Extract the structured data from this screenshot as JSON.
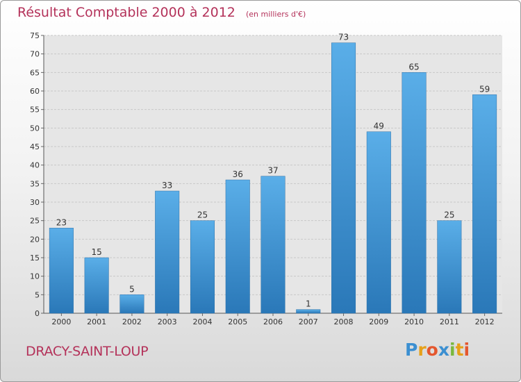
{
  "header": {
    "title": "Résultat Comptable 2000 à 2012",
    "unit": "(en milliers d'€)"
  },
  "footer": {
    "town": "DRACY-SAINT-LOUP",
    "logo_letters": [
      "P",
      "r",
      "o",
      "x",
      "i",
      "t",
      "i"
    ],
    "logo_colors": [
      "#3b8fd1",
      "#e6a11a",
      "#e4572e",
      "#3b8fd1",
      "#7ab83e",
      "#e6a11a",
      "#e4572e"
    ]
  },
  "colors": {
    "bar_top": "#5aaee8",
    "bar_bottom": "#2a78b8",
    "title": "#b4325a",
    "grid": "#c8c8c8"
  },
  "chart_data": {
    "type": "bar",
    "categories": [
      "2000",
      "2001",
      "2002",
      "2003",
      "2004",
      "2005",
      "2006",
      "2007",
      "2008",
      "2009",
      "2010",
      "2011",
      "2012"
    ],
    "values": [
      23,
      15,
      5,
      33,
      25,
      36,
      37,
      1,
      73,
      49,
      65,
      25,
      59
    ],
    "ylim": [
      0,
      75
    ],
    "yticks": [
      0,
      5,
      10,
      15,
      20,
      25,
      30,
      35,
      40,
      45,
      50,
      55,
      60,
      65,
      70,
      75
    ],
    "grid": true,
    "legend": "none"
  }
}
